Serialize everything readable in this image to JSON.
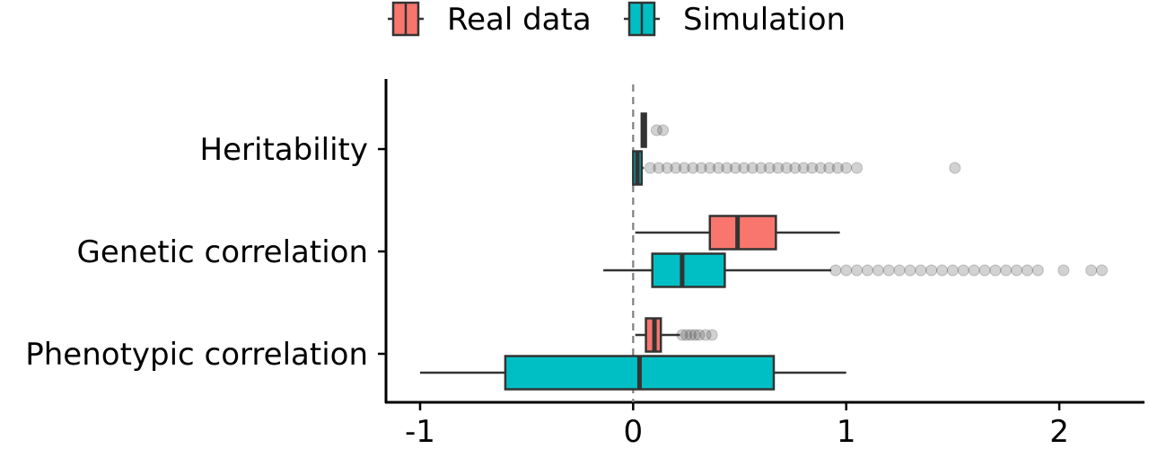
{
  "chart_data": {
    "type": "boxplot",
    "orientation": "horizontal",
    "categories": [
      "Heritability",
      "Genetic correlation",
      "Phenotypic correlation"
    ],
    "series": [
      {
        "name": "Real data",
        "color": "#F8766D",
        "boxes": [
          {
            "category": "Heritability",
            "whisker_low": 0.04,
            "q1": 0.04,
            "median": 0.05,
            "q3": 0.06,
            "whisker_high": 0.06,
            "outliers": [
              0.11,
              0.14
            ]
          },
          {
            "category": "Genetic correlation",
            "whisker_low": 0.01,
            "q1": 0.36,
            "median": 0.49,
            "q3": 0.67,
            "whisker_high": 0.97,
            "outliers": []
          },
          {
            "category": "Phenotypic correlation",
            "whisker_low": 0.01,
            "q1": 0.06,
            "median": 0.1,
            "q3": 0.13,
            "whisker_high": 0.22,
            "outliers": [
              0.23,
              0.25,
              0.27,
              0.29,
              0.31,
              0.34,
              0.37
            ]
          }
        ]
      },
      {
        "name": "Simulation",
        "color": "#00BFC4",
        "boxes": [
          {
            "category": "Heritability",
            "whisker_low": 0.0,
            "q1": 0.0,
            "median": 0.02,
            "q3": 0.04,
            "whisker_high": 0.05,
            "outliers": [
              0.08,
              0.12,
              0.16,
              0.2,
              0.24,
              0.28,
              0.32,
              0.36,
              0.4,
              0.44,
              0.48,
              0.52,
              0.56,
              0.6,
              0.64,
              0.68,
              0.72,
              0.76,
              0.8,
              0.84,
              0.88,
              0.92,
              0.96,
              1.0,
              1.05,
              1.51
            ]
          },
          {
            "category": "Genetic correlation",
            "whisker_low": -0.14,
            "q1": 0.09,
            "median": 0.23,
            "q3": 0.43,
            "whisker_high": 0.93,
            "outliers": [
              0.95,
              1.0,
              1.05,
              1.1,
              1.15,
              1.2,
              1.25,
              1.3,
              1.35,
              1.4,
              1.45,
              1.5,
              1.55,
              1.6,
              1.65,
              1.7,
              1.75,
              1.8,
              1.85,
              1.9,
              2.02,
              2.15,
              2.2
            ]
          },
          {
            "category": "Phenotypic correlation",
            "whisker_low": -1.0,
            "q1": -0.6,
            "median": 0.03,
            "q3": 0.66,
            "whisker_high": 1.0,
            "outliers": []
          }
        ]
      }
    ],
    "xlim": [
      -1.16,
      2.4
    ],
    "xticks": [
      "-1",
      "0",
      "1",
      "2"
    ],
    "xtick_values": [
      -1,
      0,
      1,
      2
    ],
    "reference_line": 0,
    "xlabel": "",
    "ylabel": "",
    "title": "",
    "legend_position": "top",
    "grid": false
  }
}
